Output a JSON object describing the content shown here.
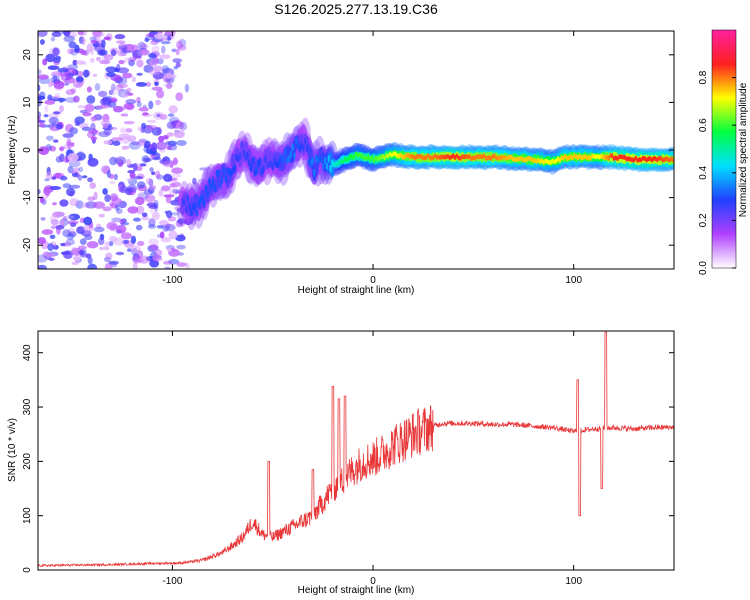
{
  "title": "S126.2025.277.13.19.C36",
  "chart_data": [
    {
      "type": "heatmap",
      "name": "spectrogram",
      "xlabel": "Height of straight line (km)",
      "ylabel": "Frequency (Hz)",
      "xlim": [
        -167,
        150
      ],
      "ylim": [
        -25,
        25
      ],
      "xticks": [
        -100,
        0,
        100
      ],
      "yticks": [
        -20,
        -10,
        0,
        10,
        20
      ],
      "colorbar": {
        "label": "Normalized spectral amplitude",
        "range": [
          0,
          1
        ],
        "ticks": [
          0.0,
          0.2,
          0.4,
          0.6,
          0.8
        ],
        "tick_labels": [
          "0.0",
          "0.2",
          "0.4",
          "0.6",
          "0.8"
        ],
        "colors": [
          "#ffffff",
          "#b040ff",
          "#2040ff",
          "#00e0ff",
          "#00ff40",
          "#ffff00",
          "#ff2020",
          "#ff20a0"
        ]
      },
      "noise_region_x": [
        -167,
        -95
      ],
      "ridge": {
        "x": [
          -95,
          -88,
          -80,
          -72,
          -65,
          -58,
          -52,
          -46,
          -40,
          -34,
          -30,
          -26,
          -20,
          -14,
          -8,
          0,
          10,
          20,
          30,
          40,
          50,
          60,
          70,
          80,
          90,
          95,
          100,
          108,
          112,
          120,
          130,
          140,
          150
        ],
        "freq": [
          -11,
          -12,
          -7,
          -5,
          0,
          -4,
          -2,
          -3,
          0,
          2,
          -4,
          -2,
          -3,
          -2,
          -1,
          -2,
          -1,
          -1.5,
          -1.5,
          -1.5,
          -1.5,
          -1.5,
          -1.8,
          -2,
          -2.5,
          -1.5,
          -1.5,
          -1.5,
          -1.5,
          -1.5,
          -2,
          -2,
          -2
        ],
        "amplitude": [
          0.25,
          0.3,
          0.3,
          0.3,
          0.25,
          0.3,
          0.25,
          0.3,
          0.35,
          0.25,
          0.35,
          0.3,
          0.45,
          0.55,
          0.6,
          0.6,
          0.7,
          0.8,
          0.8,
          0.85,
          0.8,
          0.8,
          0.75,
          0.75,
          0.7,
          0.75,
          0.75,
          0.75,
          0.7,
          0.85,
          0.85,
          0.85,
          0.8
        ]
      }
    },
    {
      "type": "line",
      "name": "snr",
      "xlabel": "Height of straight line (km)",
      "ylabel": "SNR (10 * v/v)",
      "xlim": [
        -167,
        150
      ],
      "ylim": [
        0,
        440
      ],
      "xticks": [
        -100,
        0,
        100
      ],
      "yticks": [
        0,
        100,
        200,
        300,
        400
      ],
      "color": "#e8383a",
      "series": [
        {
          "name": "SNR",
          "x": [
            -167,
            -150,
            -130,
            -110,
            -95,
            -85,
            -80,
            -75,
            -70,
            -65,
            -60,
            -55,
            -50,
            -45,
            -40,
            -35,
            -30,
            -25,
            -20,
            -15,
            -10,
            -5,
            0,
            5,
            10,
            15,
            20,
            25,
            30,
            35,
            40,
            50,
            60,
            70,
            80,
            90,
            100,
            110,
            120,
            130,
            140,
            150
          ],
          "y": [
            8,
            9,
            10,
            12,
            13,
            18,
            25,
            32,
            45,
            60,
            90,
            65,
            60,
            70,
            80,
            90,
            100,
            125,
            150,
            165,
            185,
            200,
            205,
            215,
            230,
            240,
            250,
            258,
            265,
            270,
            270,
            270,
            268,
            268,
            265,
            262,
            255,
            260,
            262,
            260,
            262,
            263
          ],
          "spikes": [
            [
              -52,
              200
            ],
            [
              -20,
              338
            ],
            [
              -17,
              315
            ],
            [
              -14,
              320
            ],
            [
              -30,
              185
            ],
            [
              102,
              350
            ],
            [
              103,
              100
            ],
            [
              114,
              150
            ],
            [
              116,
              438
            ]
          ]
        }
      ]
    }
  ]
}
